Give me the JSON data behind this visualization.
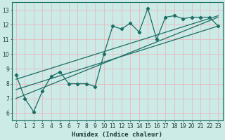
{
  "xlabel": "Humidex (Indice chaleur)",
  "xlim": [
    -0.5,
    23.5
  ],
  "ylim": [
    5.5,
    13.5
  ],
  "xticks": [
    0,
    1,
    2,
    3,
    4,
    5,
    6,
    7,
    8,
    9,
    10,
    11,
    12,
    13,
    14,
    15,
    16,
    17,
    18,
    19,
    20,
    21,
    22,
    23
  ],
  "yticks": [
    6,
    7,
    8,
    9,
    10,
    11,
    12,
    13
  ],
  "bg_color": "#cceae6",
  "grid_color": "#e8b8c0",
  "line_color": "#1a6e64",
  "zigzag": {
    "x": [
      0,
      1,
      2,
      3,
      4,
      5,
      6,
      7,
      8,
      9,
      10,
      11,
      12,
      13,
      14,
      15,
      16,
      17,
      18,
      19,
      20,
      21,
      22,
      23
    ],
    "y": [
      8.6,
      7.0,
      6.1,
      7.5,
      8.5,
      8.8,
      8.0,
      8.0,
      8.0,
      7.8,
      10.0,
      11.9,
      11.7,
      12.1,
      11.5,
      13.1,
      11.0,
      12.5,
      12.6,
      12.4,
      12.5,
      12.5,
      12.5,
      11.9
    ]
  },
  "trend_lines": [
    {
      "x": [
        0,
        23
      ],
      "y": [
        7.0,
        12.5
      ]
    },
    {
      "x": [
        0,
        23
      ],
      "y": [
        7.6,
        11.9
      ]
    },
    {
      "x": [
        0,
        23
      ],
      "y": [
        8.3,
        12.6
      ]
    }
  ],
  "tick_fontsize": 5.5,
  "xlabel_fontsize": 6.5
}
